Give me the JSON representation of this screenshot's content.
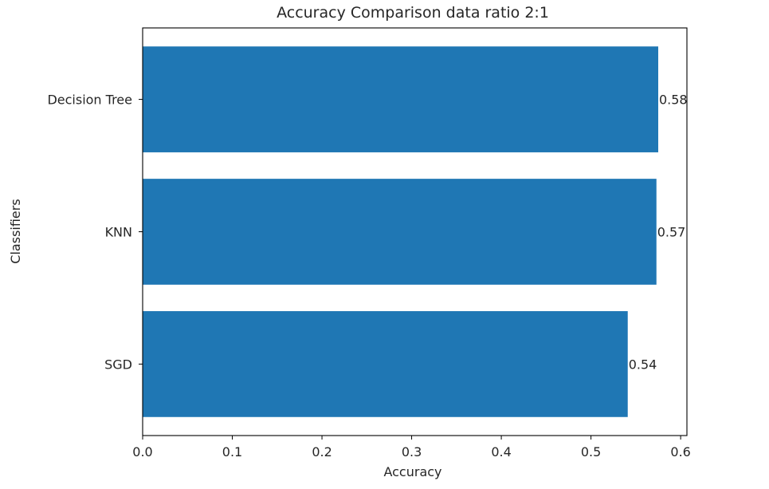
{
  "chart_data": {
    "type": "bar",
    "orientation": "horizontal",
    "title": "Accuracy Comparison data ratio 2:1",
    "xlabel": "Accuracy",
    "ylabel": "Classifiers",
    "categories": [
      "SGD",
      "KNN",
      "Decision Tree"
    ],
    "values": [
      0.541,
      0.573,
      0.575
    ],
    "value_labels": [
      "0.54",
      "0.57",
      "0.58"
    ],
    "xlim": [
      0,
      0.607
    ],
    "xticks": [
      0.0,
      0.1,
      0.2,
      0.3,
      0.4,
      0.5,
      0.6
    ],
    "xtick_labels": [
      "0.0",
      "0.1",
      "0.2",
      "0.3",
      "0.4",
      "0.5",
      "0.6"
    ],
    "bar_color": "#1f77b4",
    "grid": false
  }
}
